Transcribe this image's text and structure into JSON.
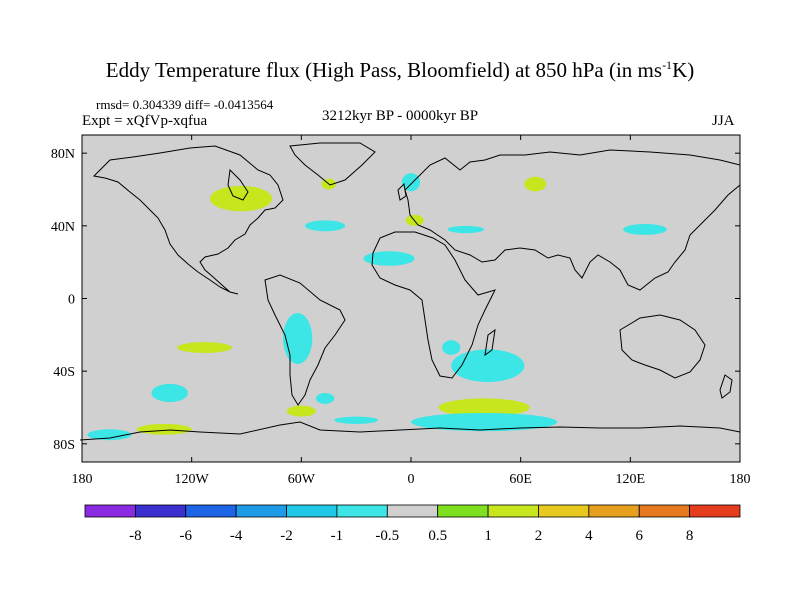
{
  "header": {
    "title_main": "Eddy Temperature flux (High Pass, Bloomfield) at 850 hPa (in ms",
    "title_sup": "-1",
    "title_end": "K)",
    "stats": "rmsd= 0.304339 diff= -0.0413564",
    "expt": "Expt = xQfVp-xqfua",
    "period": "3212kyr BP - 0000kyr BP",
    "season": "JJA"
  },
  "map": {
    "lon_range": [
      -180,
      180
    ],
    "lat_range": [
      -90,
      90
    ],
    "background_color": "#d0d0d0",
    "x_ticks": [
      {
        "lon": -180,
        "label": "180"
      },
      {
        "lon": -120,
        "label": "120W"
      },
      {
        "lon": -60,
        "label": "60W"
      },
      {
        "lon": 0,
        "label": "0"
      },
      {
        "lon": 60,
        "label": "60E"
      },
      {
        "lon": 120,
        "label": "120E"
      },
      {
        "lon": 180,
        "label": "180"
      }
    ],
    "y_ticks": [
      {
        "lat": 80,
        "label": "80N"
      },
      {
        "lat": 40,
        "label": "40N"
      },
      {
        "lat": 0,
        "label": "0"
      },
      {
        "lat": -40,
        "label": "40S"
      },
      {
        "lat": -80,
        "label": "80S"
      }
    ]
  },
  "colorbar": {
    "colors": [
      "#8a2be2",
      "#3b2fd0",
      "#1e64e6",
      "#1e9be6",
      "#1ec8e6",
      "#3ce6e6",
      "#d0d0d0",
      "#7ee01e",
      "#c8e61e",
      "#e6c81e",
      "#e6a01e",
      "#e6781e",
      "#e63c1e"
    ],
    "labels": [
      "-8",
      "-6",
      "-4",
      "-2",
      "-1",
      "-0.5",
      "0.5",
      "1",
      "2",
      "4",
      "6",
      "8"
    ]
  },
  "anomaly_regions": [
    {
      "lon": -93,
      "lat": 55,
      "rx": 17,
      "ry": 7,
      "value": 1
    },
    {
      "lon": -63,
      "lat": 10,
      "rx": 0,
      "ry": 0,
      "value": 0
    },
    {
      "lon": -47,
      "lat": 40,
      "rx": 11,
      "ry": 3,
      "value": -1
    },
    {
      "lon": -45,
      "lat": 63,
      "rx": 4,
      "ry": 3,
      "value": 1
    },
    {
      "lon": 0,
      "lat": 64,
      "rx": 5,
      "ry": 5,
      "value": -1
    },
    {
      "lon": 2,
      "lat": 43,
      "rx": 5,
      "ry": 3,
      "value": 1
    },
    {
      "lon": -12,
      "lat": 22,
      "rx": 14,
      "ry": 4,
      "value": -1
    },
    {
      "lon": 68,
      "lat": 63,
      "rx": 6,
      "ry": 4,
      "value": 1
    },
    {
      "lon": 128,
      "lat": 38,
      "rx": 12,
      "ry": 3,
      "value": -1
    },
    {
      "lon": 30,
      "lat": 38,
      "rx": 10,
      "ry": 2,
      "value": -1
    },
    {
      "lon": -62,
      "lat": -22,
      "rx": 8,
      "ry": 14,
      "value": -1
    },
    {
      "lon": -113,
      "lat": -27,
      "rx": 15,
      "ry": 3,
      "value": 1
    },
    {
      "lon": -132,
      "lat": -52,
      "rx": 10,
      "ry": 5,
      "value": -1
    },
    {
      "lon": -47,
      "lat": -55,
      "rx": 5,
      "ry": 3,
      "value": -1
    },
    {
      "lon": 22,
      "lat": -27,
      "rx": 5,
      "ry": 4,
      "value": -1
    },
    {
      "lon": 42,
      "lat": -37,
      "rx": 20,
      "ry": 9,
      "value": -1
    },
    {
      "lon": 40,
      "lat": -60,
      "rx": 25,
      "ry": 5,
      "value": 1.5
    },
    {
      "lon": 40,
      "lat": -68,
      "rx": 40,
      "ry": 5,
      "value": -1
    },
    {
      "lon": -135,
      "lat": -72,
      "rx": 15,
      "ry": 3,
      "value": 1
    },
    {
      "lon": -60,
      "lat": -62,
      "rx": 8,
      "ry": 3,
      "value": 1
    },
    {
      "lon": -30,
      "lat": -67,
      "rx": 12,
      "ry": 2,
      "value": -1
    },
    {
      "lon": -165,
      "lat": -75,
      "rx": 12,
      "ry": 3,
      "value": -1
    }
  ]
}
